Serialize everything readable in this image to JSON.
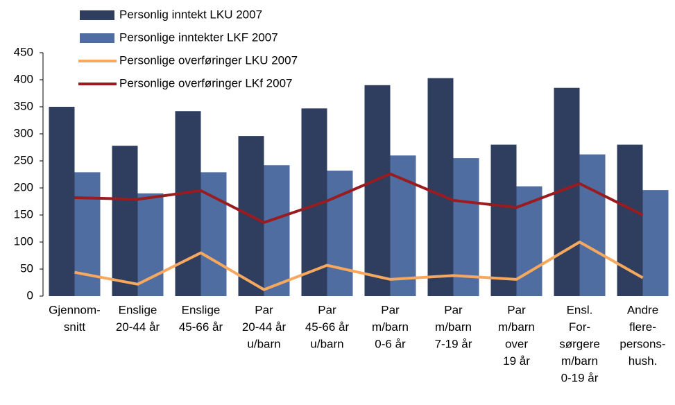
{
  "chart_data": {
    "type": "bar-line",
    "categories": [
      [
        "Gjennom-",
        "snitt"
      ],
      [
        "Enslige",
        "20-44 år"
      ],
      [
        "Enslige",
        "45-66 år"
      ],
      [
        "Par",
        "20-44 år",
        "u/barn"
      ],
      [
        "Par",
        "45-66 år",
        "u/barn"
      ],
      [
        "Par",
        "m/barn",
        "0-6 år"
      ],
      [
        "Par",
        "m/barn",
        "7-19 år"
      ],
      [
        "Par",
        "m/barn",
        "over",
        "19 år"
      ],
      [
        "Ensl.",
        "For-",
        "sørgere",
        "m/barn",
        "0-19 år"
      ],
      [
        "Andre",
        "flere-",
        "persons-",
        "hush."
      ]
    ],
    "series": [
      {
        "name": "Personlig inntekt LKU 2007",
        "type": "bar",
        "color": "#2f3d5e",
        "values": [
          350,
          278,
          342,
          296,
          347,
          390,
          403,
          280,
          385,
          280
        ]
      },
      {
        "name": "Personlige inntekter LKF 2007",
        "type": "bar",
        "color": "#4f6da1",
        "values": [
          229,
          190,
          229,
          242,
          232,
          260,
          255,
          203,
          262,
          196
        ]
      },
      {
        "name": "Personlige overføringer LKU 2007",
        "type": "line",
        "color": "#f6a95e",
        "values": [
          44,
          22,
          80,
          12,
          57,
          31,
          38,
          31,
          100,
          34
        ]
      },
      {
        "name": "Personlige overføringer LKf 2007",
        "type": "line",
        "color": "#981c20",
        "values": [
          182,
          179,
          195,
          136,
          176,
          226,
          177,
          164,
          208,
          150
        ]
      }
    ],
    "ylim": [
      0,
      450
    ],
    "yticks": [
      0,
      50,
      100,
      150,
      200,
      250,
      300,
      350,
      400,
      450
    ],
    "legend": "top-left"
  }
}
